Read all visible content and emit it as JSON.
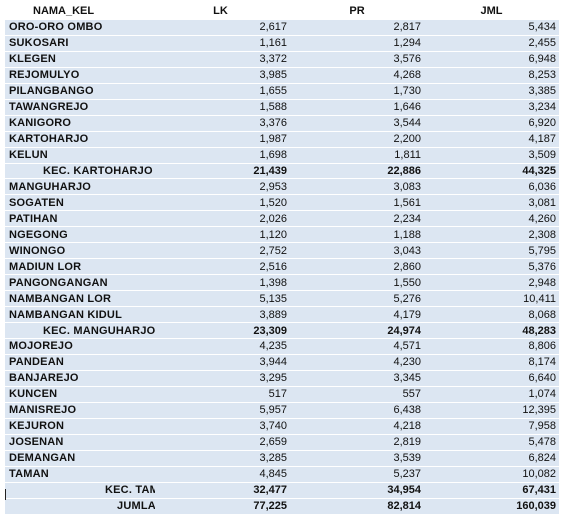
{
  "headers": {
    "name": "NAMA_KEL",
    "lk": "LK",
    "pr": "PR",
    "jml": "JML"
  },
  "rows": [
    {
      "type": "village",
      "name": "ORO-ORO  OMBO",
      "lk": "2,617",
      "pr": "2,817",
      "jml": "5,434"
    },
    {
      "type": "village",
      "name": "SUKOSARI",
      "lk": "1,161",
      "pr": "1,294",
      "jml": "2,455"
    },
    {
      "type": "village",
      "name": "KLEGEN",
      "lk": "3,372",
      "pr": "3,576",
      "jml": "6,948"
    },
    {
      "type": "village",
      "name": "REJOMULYO",
      "lk": "3,985",
      "pr": "4,268",
      "jml": "8,253"
    },
    {
      "type": "village",
      "name": "PILANGBANGO",
      "lk": "1,655",
      "pr": "1,730",
      "jml": "3,385"
    },
    {
      "type": "village",
      "name": "TAWANGREJO",
      "lk": "1,588",
      "pr": "1,646",
      "jml": "3,234"
    },
    {
      "type": "village",
      "name": "KANIGORO",
      "lk": "3,376",
      "pr": "3,544",
      "jml": "6,920"
    },
    {
      "type": "village",
      "name": "KARTOHARJO",
      "lk": "1,987",
      "pr": "2,200",
      "jml": "4,187"
    },
    {
      "type": "village",
      "name": "KELUN",
      "lk": "1,698",
      "pr": "1,811",
      "jml": "3,509"
    },
    {
      "type": "subtotal",
      "name": "KEC.  KARTOHARJO",
      "lk": "21,439",
      "pr": "22,886",
      "jml": "44,325"
    },
    {
      "type": "village",
      "name": "MANGUHARJO",
      "lk": "2,953",
      "pr": "3,083",
      "jml": "6,036"
    },
    {
      "type": "village",
      "name": "SOGATEN",
      "lk": "1,520",
      "pr": "1,561",
      "jml": "3,081"
    },
    {
      "type": "village",
      "name": "PATIHAN",
      "lk": "2,026",
      "pr": "2,234",
      "jml": "4,260"
    },
    {
      "type": "village",
      "name": "NGEGONG",
      "lk": "1,120",
      "pr": "1,188",
      "jml": "2,308"
    },
    {
      "type": "village",
      "name": "WINONGO",
      "lk": "2,752",
      "pr": "3,043",
      "jml": "5,795"
    },
    {
      "type": "village",
      "name": "MADIUN  LOR",
      "lk": "2,516",
      "pr": "2,860",
      "jml": "5,376"
    },
    {
      "type": "village",
      "name": "PANGONGANGAN",
      "lk": "1,398",
      "pr": "1,550",
      "jml": "2,948"
    },
    {
      "type": "village",
      "name": "NAMBANGAN  LOR",
      "lk": "5,135",
      "pr": "5,276",
      "jml": "10,411"
    },
    {
      "type": "village",
      "name": "NAMBANGAN  KIDUL",
      "lk": "3,889",
      "pr": "4,179",
      "jml": "8,068"
    },
    {
      "type": "subtotal",
      "name": "KEC.  MANGUHARJO",
      "lk": "23,309",
      "pr": "24,974",
      "jml": "48,283"
    },
    {
      "type": "village",
      "name": "MOJOREJO",
      "lk": "4,235",
      "pr": "4,571",
      "jml": "8,806"
    },
    {
      "type": "village",
      "name": "PANDEAN",
      "lk": "3,944",
      "pr": "4,230",
      "jml": "8,174"
    },
    {
      "type": "village",
      "name": "BANJAREJO",
      "lk": "3,295",
      "pr": "3,345",
      "jml": "6,640"
    },
    {
      "type": "village",
      "name": "KUNCEN",
      "lk": "517",
      "pr": "557",
      "jml": "1,074"
    },
    {
      "type": "village",
      "name": "MANISREJO",
      "lk": "5,957",
      "pr": "6,438",
      "jml": "12,395"
    },
    {
      "type": "village",
      "name": "KEJURON",
      "lk": "3,740",
      "pr": "4,218",
      "jml": "7,958"
    },
    {
      "type": "village",
      "name": "JOSENAN",
      "lk": "2,659",
      "pr": "2,819",
      "jml": "5,478"
    },
    {
      "type": "village",
      "name": "DEMANGAN",
      "lk": "3,285",
      "pr": "3,539",
      "jml": "6,824"
    },
    {
      "type": "village",
      "name": "TAMAN",
      "lk": "4,845",
      "pr": "5,237",
      "jml": "10,082"
    },
    {
      "type": "subtotal-short",
      "name": "KEC.  TAMAN",
      "lk": "32,477",
      "pr": "34,954",
      "jml": "67,431"
    },
    {
      "type": "total",
      "name": "JUMLAH",
      "lk": "77,225",
      "pr": "82,814",
      "jml": "160,039"
    }
  ]
}
